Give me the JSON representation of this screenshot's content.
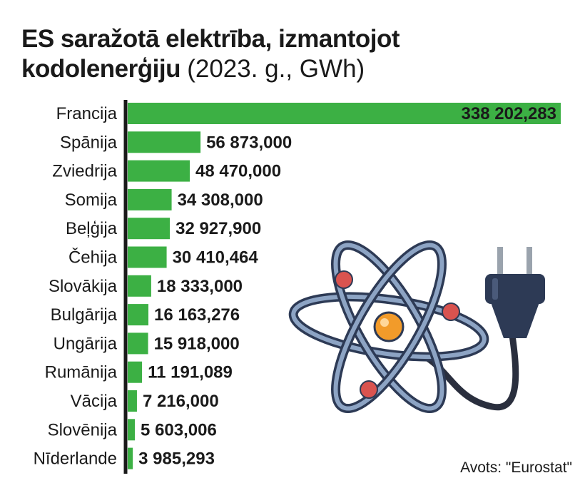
{
  "header": {
    "title_bold": "ES saražotā elektrība, izmantojot kodolenerģiju",
    "title_normal": "(2023. g., GWh)"
  },
  "source": "Avots: \"Eurostat\"",
  "colors": {
    "bar": "#3cb044",
    "axis": "#1a1a1a",
    "text": "#1a1a1a"
  },
  "illustration": {
    "icon": "atom-with-power-plug-icon"
  },
  "chart_data": {
    "type": "bar",
    "orientation": "horizontal",
    "title": "ES saražotā elektrība, izmantojot kodolenerģiju (2023. g., GWh)",
    "categories": [
      "Francija",
      "Spānija",
      "Zviedrija",
      "Somija",
      "Beļģija",
      "Čehija",
      "Slovākija",
      "Bulgārija",
      "Ungārija",
      "Rumānija",
      "Vācija",
      "Slovēnija",
      "Nīderlande"
    ],
    "values": [
      338202.283,
      56873.0,
      48470.0,
      34308.0,
      32927.9,
      30410.464,
      18333.0,
      16163.276,
      15918.0,
      11191.089,
      7216.0,
      5603.006,
      3985.293
    ],
    "value_labels": [
      "338 202,283",
      "56 873,000",
      "48 470,000",
      "34 308,000",
      "32 927,900",
      "30 410,464",
      "18 333,000",
      "16 163,276",
      "15 918,000",
      "11 191,089",
      "7 216,000",
      "5 603,006",
      "3 985,293"
    ],
    "xlim": [
      0,
      338202.283
    ],
    "grid": false,
    "legend": "none"
  }
}
